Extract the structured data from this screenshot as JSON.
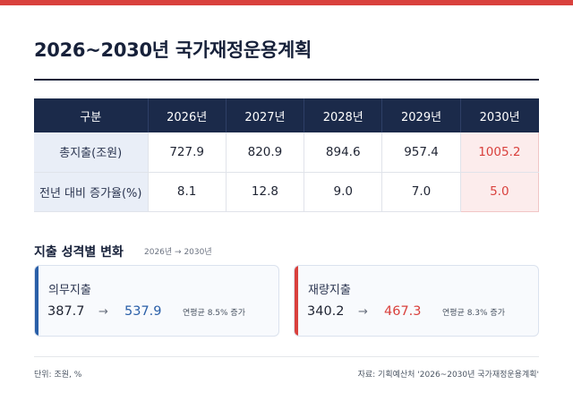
{
  "colors": {
    "top_bar": "#d9413d",
    "navy": "#17213a",
    "header_bg": "#1b2a4a",
    "label_bg": "#e9eef7",
    "highlight_bg": "#fcecec",
    "highlight_text": "#d9413d",
    "blue_accent": "#2a5fa8",
    "red_accent": "#d9413d"
  },
  "title": "2026~2030년 국가재정운용계획",
  "table": {
    "header": {
      "label": "구분",
      "years": [
        "2026년",
        "2027년",
        "2028년",
        "2029년",
        "2030년"
      ]
    },
    "rows": [
      {
        "label": "총지출(조원)",
        "values": [
          "727.9",
          "820.9",
          "894.6",
          "957.4",
          "1005.2"
        ]
      },
      {
        "label": "전년 대비 증가율(%)",
        "values": [
          "8.1",
          "12.8",
          "9.0",
          "7.0",
          "5.0"
        ]
      }
    ]
  },
  "section": {
    "title": "지출 성격별 변화",
    "subtitle": "2026년 → 2030년"
  },
  "cards": [
    {
      "label": "의무지출",
      "from": "387.7",
      "arrow": "→",
      "to": "537.9",
      "rate": "연평균 8.5% 증가"
    },
    {
      "label": "재량지출",
      "from": "340.2",
      "arrow": "→",
      "to": "467.3",
      "rate": "연평균 8.3% 증가"
    }
  ],
  "footer": {
    "unit": "단위: 조원, %",
    "source": "자료: 기획예산처 '2026~2030년 국가재정운용계획'"
  }
}
